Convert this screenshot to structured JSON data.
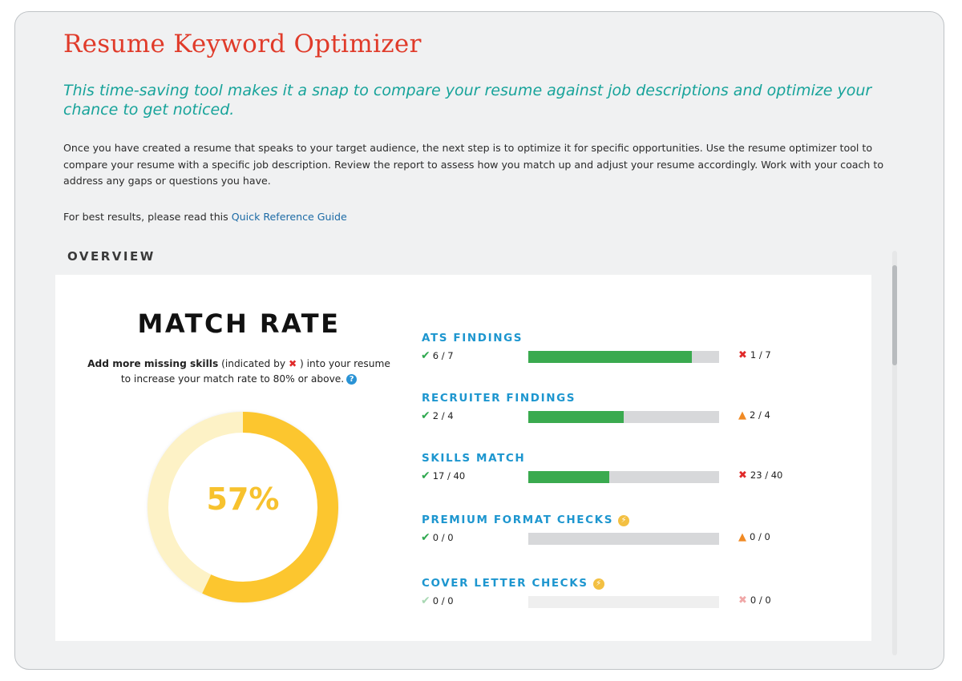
{
  "page": {
    "title": "Resume Keyword Optimizer",
    "subtitle": "This time-saving tool makes it a snap to compare your resume against job descriptions and optimize your chance to get noticed.",
    "intro": "Once you have created a resume that speaks to your target audience, the next step is to optimize it for specific opportunities. Use the resume optimizer tool to compare your resume with a specific job description. Review the report to assess how you match up and adjust your resume accordingly. Work with your coach to address any gaps or questions you have.",
    "guide_prefix": "For best results, please read this ",
    "guide_link": "Quick Reference Guide"
  },
  "overview": {
    "heading": "OVERVIEW",
    "match_rate": {
      "title": "MATCH RATE",
      "hint_bold": "Add more missing skills",
      "hint_part1": " (indicated by ",
      "hint_part2": " ) into your resume",
      "hint_line2": "to increase your match rate to 80% or above.",
      "value_label": "57%",
      "percent": 57
    },
    "metrics": [
      {
        "title": "ATS FINDINGS",
        "passed": "6 / 7",
        "failed": "1 / 7",
        "fail_icon": "x-icon",
        "fill_fraction": 0.857,
        "premium": false
      },
      {
        "title": "RECRUITER FINDINGS",
        "passed": "2 / 4",
        "failed": "2 / 4",
        "fail_icon": "warning-icon",
        "fill_fraction": 0.5,
        "premium": false
      },
      {
        "title": "SKILLS MATCH",
        "passed": "17 / 40",
        "failed": "23 / 40",
        "fail_icon": "x-icon",
        "fill_fraction": 0.425,
        "premium": false
      },
      {
        "title": "PREMIUM FORMAT CHECKS",
        "passed": "0 / 0",
        "failed": "0 / 0",
        "fail_icon": "warning-icon",
        "fill_fraction": 0,
        "premium": true
      },
      {
        "title": "COVER LETTER CHECKS",
        "passed": "0 / 0",
        "failed": "0 / 0",
        "fail_icon": "x-icon",
        "fill_fraction": 0,
        "premium": true,
        "dimmed": true
      }
    ]
  },
  "colors": {
    "title": "#e03b2a",
    "subtitle": "#17a39a",
    "accent_blue": "#1d96cf",
    "pass_green": "#3aaa4f",
    "donut_fill": "#fcc62f",
    "donut_track": "#fdf2c6"
  }
}
